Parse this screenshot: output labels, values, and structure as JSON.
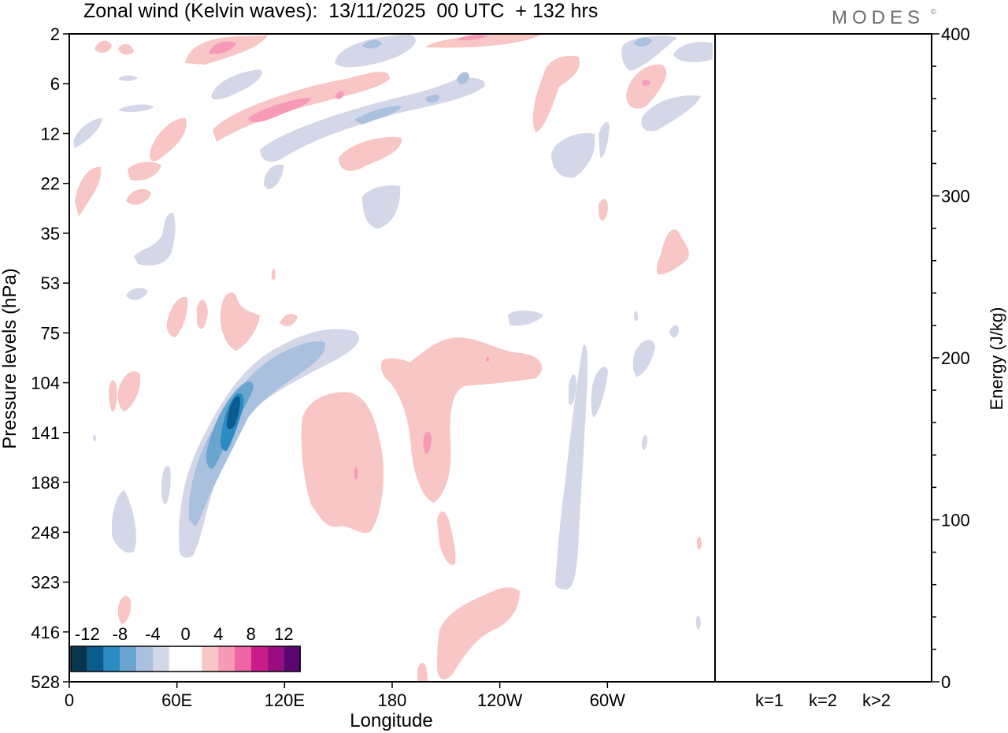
{
  "header": {
    "title": "Zonal wind (Kelvin waves):  13/11/2025  00 UTC  + 132 hrs",
    "brand": "MODES",
    "brand_mark": "©"
  },
  "colors": {
    "neg_levels": [
      "#08364f",
      "#0a5b8e",
      "#2b8cc4",
      "#6aa5d0",
      "#a9c0de",
      "#d4d7e8"
    ],
    "zero": "#ffffff",
    "pos_levels": [
      "#f8c6c4",
      "#f79ab8",
      "#ef64a4",
      "#cd1a8a",
      "#9a0d81",
      "#5b0670"
    ]
  },
  "chart_data": [
    {
      "type": "heatmap",
      "variable": "zonal wind anomaly",
      "xlabel": "Longitude",
      "ylabel": "Pressure levels (hPa)",
      "x_ticks": [
        "0",
        "60E",
        "120E",
        "180",
        "120W",
        "60W"
      ],
      "y_ticks": [
        "2",
        "6",
        "12",
        "22",
        "35",
        "53",
        "75",
        "104",
        "141",
        "188",
        "248",
        "323",
        "416",
        "528"
      ],
      "colorbar": {
        "labels": [
          "-12",
          "-8",
          "-4",
          "0",
          "4",
          "8",
          "12"
        ],
        "levels": [
          -14,
          -12,
          -10,
          -8,
          -6,
          -4,
          -2,
          2,
          4,
          6,
          8,
          10,
          12,
          14
        ]
      },
      "features": [
        {
          "lon": 91,
          "level": "104–188",
          "sign": "negative",
          "peak": -12
        },
        {
          "lon": 155,
          "level": "104–248",
          "sign": "positive",
          "peak": 4
        },
        {
          "lon": 195,
          "level": "75–188",
          "sign": "positive",
          "peak": 6
        },
        {
          "lon": 330,
          "level": "6–12",
          "sign": "positive",
          "peak": 6
        }
      ]
    },
    {
      "type": "bar",
      "categories": [
        "k=1",
        "k=2",
        "k>2"
      ],
      "values": [
        0.3,
        0.2,
        0.4
      ],
      "ylabel": "Energy (J/kg)",
      "ylim": [
        0,
        400
      ],
      "y_ticks": [
        "0",
        "100",
        "200",
        "300",
        "400"
      ]
    }
  ]
}
